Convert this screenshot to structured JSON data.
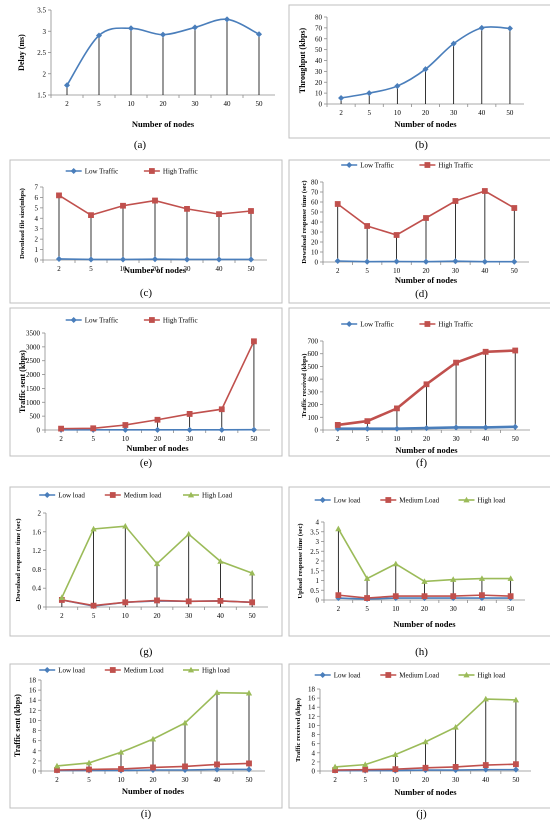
{
  "figure": {
    "panels": [
      "(a)",
      "(b)",
      "(c)",
      "(d)",
      "(e)",
      "(f)",
      "(g)",
      "(h)",
      "(i)",
      "(j)"
    ]
  },
  "colors": {
    "blue": "#4a7ebb",
    "red": "#c0504d",
    "green": "#9bbb59",
    "drop": "#000000",
    "frame": "#bfbfbf"
  },
  "chart_data": [
    {
      "id": "a",
      "type": "line",
      "panel_label": "(a)",
      "categories": [
        "2",
        "5",
        "10",
        "20",
        "30",
        "40",
        "50"
      ],
      "series": [
        {
          "color": "#4a7ebb",
          "marker": "diamond",
          "values": [
            1.73,
            2.9,
            3.07,
            2.92,
            3.09,
            3.28,
            2.93
          ]
        }
      ],
      "ylim": [
        1.5,
        3.5
      ],
      "yticks": [
        "1.5",
        "2",
        "2.5",
        "3",
        "3.5"
      ],
      "xlabel": "Number of nodes",
      "ylabel": "Delay (ms)",
      "legend": [],
      "legend_position": "none",
      "grid": false
    },
    {
      "id": "b",
      "type": "line",
      "panel_label": "(b)",
      "categories": [
        "2",
        "5",
        "10",
        "20",
        "30",
        "40",
        "50"
      ],
      "series": [
        {
          "color": "#4a7ebb",
          "marker": "diamond",
          "values": [
            5.5,
            10,
            16.5,
            32,
            55.5,
            70,
            69.5
          ]
        }
      ],
      "ylim": [
        0,
        80
      ],
      "yticks": [
        "0",
        "10",
        "20",
        "30",
        "40",
        "50",
        "60",
        "70",
        "80"
      ],
      "xlabel": "Number of nodes",
      "ylabel": "Throughput (kbps)",
      "legend": [],
      "legend_position": "none",
      "grid": false
    },
    {
      "id": "c",
      "type": "line",
      "panel_label": "(c)",
      "categories": [
        "2",
        "5",
        "10",
        "20",
        "30",
        "40",
        "50"
      ],
      "series": [
        {
          "name": "Low Traffic",
          "color": "#4a7ebb",
          "marker": "diamond",
          "values": [
            0.1,
            0.05,
            0.05,
            0.08,
            0.05,
            0.05,
            0.05
          ]
        },
        {
          "name": "High Traffic",
          "color": "#c0504d",
          "marker": "square",
          "values": [
            6.2,
            4.3,
            5.2,
            5.7,
            4.9,
            4.4,
            4.7
          ]
        }
      ],
      "ylim": [
        0,
        7
      ],
      "yticks": [
        "0",
        "1",
        "2",
        "3",
        "4",
        "5",
        "6",
        "7"
      ],
      "xlabel": "Number of nodes",
      "ylabel": "Download file size(mbps)",
      "legend_position": "top",
      "grid": false
    },
    {
      "id": "d",
      "type": "line",
      "panel_label": "(d)",
      "categories": [
        "2",
        "5",
        "10",
        "20",
        "30",
        "40",
        "50"
      ],
      "series": [
        {
          "name": "Low Traffic",
          "color": "#4a7ebb",
          "marker": "diamond",
          "values": [
            1,
            0.3,
            0.5,
            0.3,
            0.8,
            0.3,
            0.3
          ]
        },
        {
          "name": "High Traffic",
          "color": "#c0504d",
          "marker": "square",
          "values": [
            58,
            36,
            27,
            44,
            61,
            71,
            54
          ]
        }
      ],
      "ylim": [
        0,
        80
      ],
      "yticks": [
        "0",
        "10",
        "20",
        "30",
        "40",
        "50",
        "60",
        "70",
        "80"
      ],
      "xlabel": "Number of nodes",
      "ylabel": "Download response time (sec)",
      "legend_position": "top",
      "grid": false
    },
    {
      "id": "e",
      "type": "line",
      "panel_label": "(e)",
      "categories": [
        "2",
        "5",
        "10",
        "20",
        "30",
        "40",
        "50"
      ],
      "series": [
        {
          "name": "Low Traffic",
          "color": "#4a7ebb",
          "marker": "diamond",
          "values": [
            5,
            5,
            5,
            5,
            5,
            5,
            10
          ]
        },
        {
          "name": "High Traffic",
          "color": "#c0504d",
          "marker": "square",
          "values": [
            50,
            60,
            180,
            370,
            580,
            750,
            3200
          ]
        }
      ],
      "ylim": [
        0,
        3500
      ],
      "yticks": [
        "0",
        "500",
        "1000",
        "1500",
        "2000",
        "2500",
        "3000",
        "3500"
      ],
      "xlabel": "Number of nodes",
      "ylabel": "Traffic sent (kbps)",
      "legend_position": "top",
      "grid": false
    },
    {
      "id": "f",
      "type": "line",
      "panel_label": "(f)",
      "categories": [
        "2",
        "5",
        "10",
        "20",
        "30",
        "40",
        "50"
      ],
      "series": [
        {
          "name": "Low Traffic",
          "color": "#4a7ebb",
          "marker": "diamond",
          "values": [
            10,
            10,
            10,
            15,
            20,
            20,
            25
          ]
        },
        {
          "name": "High Traffic",
          "color": "#c0504d",
          "marker": "square",
          "values": [
            40,
            70,
            170,
            360,
            530,
            615,
            625
          ]
        }
      ],
      "ylim": [
        0,
        700
      ],
      "yticks": [
        "0",
        "100",
        "200",
        "300",
        "400",
        "500",
        "600",
        "700"
      ],
      "xlabel": "Number of nodes",
      "ylabel": "Traffic received (kbps)",
      "legend_position": "top",
      "grid": false
    },
    {
      "id": "g",
      "type": "line",
      "panel_label": "(g)",
      "categories": [
        "2",
        "5",
        "10",
        "20",
        "30",
        "40",
        "50"
      ],
      "series": [
        {
          "name": "Low load",
          "color": "#4a7ebb",
          "marker": "diamond",
          "values": [
            0.15,
            0.02,
            0.1,
            0.13,
            0.12,
            0.13,
            0.1
          ]
        },
        {
          "name": "Medium load",
          "color": "#c0504d",
          "marker": "square",
          "values": [
            0.15,
            0.03,
            0.1,
            0.14,
            0.12,
            0.13,
            0.1
          ]
        },
        {
          "name": "High Load",
          "color": "#9bbb59",
          "marker": "triangle",
          "values": [
            0.2,
            1.66,
            1.72,
            0.92,
            1.55,
            0.97,
            0.72
          ]
        }
      ],
      "ylim": [
        0,
        2
      ],
      "yticks": [
        "0",
        "0.4",
        "0.8",
        "1.2",
        "1.6",
        "2"
      ],
      "xlabel": "",
      "ylabel": "Download response time (sec)",
      "legend_position": "top",
      "grid": false
    },
    {
      "id": "h",
      "type": "line",
      "panel_label": "(h)",
      "categories": [
        "2",
        "5",
        "10",
        "20",
        "30",
        "40",
        "50"
      ],
      "series": [
        {
          "name": "Low load",
          "color": "#4a7ebb",
          "marker": "diamond",
          "values": [
            0.1,
            0.05,
            0.1,
            0.1,
            0.1,
            0.1,
            0.1
          ]
        },
        {
          "name": "Medium Load",
          "color": "#c0504d",
          "marker": "square",
          "values": [
            0.25,
            0.1,
            0.2,
            0.2,
            0.2,
            0.25,
            0.2
          ]
        },
        {
          "name": "High load",
          "color": "#9bbb59",
          "marker": "triangle",
          "values": [
            3.65,
            1.1,
            1.85,
            0.95,
            1.05,
            1.1,
            1.1
          ]
        }
      ],
      "ylim": [
        0,
        4
      ],
      "yticks": [
        "0",
        "0.5",
        "1",
        "1.5",
        "2",
        "2.5",
        "3",
        "3.5",
        "4"
      ],
      "xlabel": "Number of nodes",
      "ylabel": "Upload response time (sec)",
      "legend_position": "top",
      "grid": false
    },
    {
      "id": "i",
      "type": "line",
      "panel_label": "(i)",
      "categories": [
        "2",
        "5",
        "10",
        "20",
        "30",
        "40",
        "50"
      ],
      "series": [
        {
          "name": "Low load",
          "color": "#4a7ebb",
          "marker": "diamond",
          "values": [
            0.1,
            0.1,
            0.1,
            0.2,
            0.2,
            0.3,
            0.3
          ]
        },
        {
          "name": "Medium Load",
          "color": "#c0504d",
          "marker": "square",
          "values": [
            0.2,
            0.3,
            0.4,
            0.7,
            0.9,
            1.3,
            1.5
          ]
        },
        {
          "name": "High load",
          "color": "#9bbb59",
          "marker": "triangle",
          "values": [
            1,
            1.6,
            3.7,
            6.3,
            9.5,
            15.5,
            15.4
          ]
        }
      ],
      "ylim": [
        0,
        18
      ],
      "yticks": [
        "0",
        "2",
        "4",
        "6",
        "8",
        "10",
        "12",
        "14",
        "16",
        "18"
      ],
      "xlabel": "Number of nodes",
      "ylabel": "Traffic sent (kbps)",
      "legend_position": "top",
      "grid": false
    },
    {
      "id": "j",
      "type": "line",
      "panel_label": "(j)",
      "categories": [
        "2",
        "5",
        "10",
        "20",
        "30",
        "40",
        "50"
      ],
      "series": [
        {
          "name": "Low load",
          "color": "#4a7ebb",
          "marker": "diamond",
          "values": [
            0.1,
            0.1,
            0.1,
            0.2,
            0.2,
            0.3,
            0.3
          ]
        },
        {
          "name": "Medium Load",
          "color": "#c0504d",
          "marker": "square",
          "values": [
            0.2,
            0.3,
            0.4,
            0.7,
            0.9,
            1.3,
            1.5
          ]
        },
        {
          "name": "High load",
          "color": "#9bbb59",
          "marker": "triangle",
          "values": [
            0.9,
            1.4,
            3.6,
            6.4,
            9.6,
            15.8,
            15.6
          ]
        }
      ],
      "ylim": [
        0,
        18
      ],
      "yticks": [
        "0",
        "2",
        "4",
        "6",
        "8",
        "10",
        "12",
        "14",
        "16",
        "18"
      ],
      "xlabel": "Number of nodes",
      "ylabel": "Traffic received (kbps)",
      "legend_position": "top",
      "grid": false
    }
  ]
}
